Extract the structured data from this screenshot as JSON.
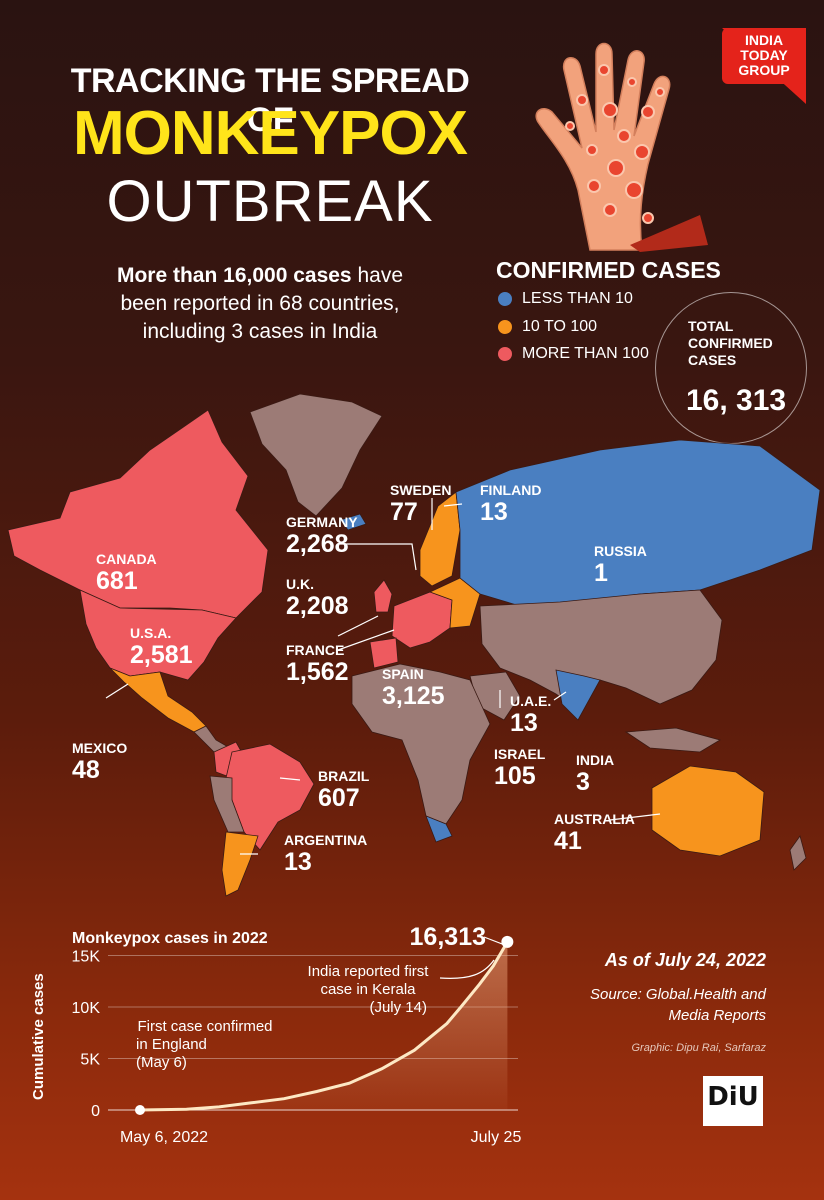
{
  "brand": {
    "text": "INDIA TODAY GROUP",
    "color": "#e4231b"
  },
  "headline": {
    "line1": "TRACKING THE SPREAD OF",
    "line2": "MONKEYPOX",
    "line3": "OUTBREAK"
  },
  "subheading": {
    "bold": "More than 16,000 cases",
    "rest1": " have",
    "line2": "been reported in 68 countries,",
    "line3": "including 3 cases in India"
  },
  "legend": {
    "title": "CONFIRMED CASES",
    "items": [
      {
        "label": "LESS THAN 10",
        "color": "#4a7fc1"
      },
      {
        "label": "10 TO 100",
        "color": "#f7941d"
      },
      {
        "label": "MORE THAN 100",
        "color": "#ee5a5f"
      }
    ]
  },
  "total": {
    "label_line1": "TOTAL",
    "label_line2": "CONFIRMED",
    "label_line3": "CASES",
    "value": "16, 313"
  },
  "map_colors": {
    "less_than_10": "#4a7fc1",
    "ten_to_100": "#f7941d",
    "more_than_100": "#ee5a5f",
    "other": "#9c7b76"
  },
  "countries": [
    {
      "name": "CANADA",
      "cases": "681"
    },
    {
      "name": "U.S.A.",
      "cases": "2,581"
    },
    {
      "name": "MEXICO",
      "cases": "48"
    },
    {
      "name": "BRAZIL",
      "cases": "607"
    },
    {
      "name": "ARGENTINA",
      "cases": "13"
    },
    {
      "name": "GERMANY",
      "cases": "2,268"
    },
    {
      "name": "U.K.",
      "cases": "2,208"
    },
    {
      "name": "FRANCE",
      "cases": "1,562"
    },
    {
      "name": "SPAIN",
      "cases": "3,125"
    },
    {
      "name": "SWEDEN",
      "cases": "77"
    },
    {
      "name": "FINLAND",
      "cases": "13"
    },
    {
      "name": "RUSSIA",
      "cases": "1"
    },
    {
      "name": "U.A.E.",
      "cases": "13"
    },
    {
      "name": "ISRAEL",
      "cases": "105"
    },
    {
      "name": "INDIA",
      "cases": "3"
    },
    {
      "name": "AUSTRALIA",
      "cases": "41"
    }
  ],
  "chart_data": {
    "type": "area",
    "title": "Monkeypox cases in 2022",
    "xlabel": "",
    "ylabel": "Cumulative cases",
    "x_tick_labels": [
      "May 6, 2022",
      "July 25"
    ],
    "y_ticks": [
      "0",
      "5K",
      "10K",
      "15K"
    ],
    "ylim": [
      0,
      16500
    ],
    "x_domain": [
      "2022-05-06",
      "2022-07-25"
    ],
    "series": [
      {
        "x": [
          "2022-05-06",
          "2022-05-16",
          "2022-05-23",
          "2022-05-30",
          "2022-06-06",
          "2022-06-13",
          "2022-06-20",
          "2022-06-27",
          "2022-07-04",
          "2022-07-11",
          "2022-07-14",
          "2022-07-18",
          "2022-07-21",
          "2022-07-24"
        ],
        "y": [
          1,
          80,
          300,
          700,
          1100,
          1800,
          2600,
          4000,
          5800,
          8400,
          10000,
          12200,
          14000,
          16313
        ]
      }
    ],
    "endpoint_label": "16,313",
    "annotations": [
      {
        "text_line1": "First case confirmed",
        "text_line2": "in England",
        "text_line3": "(May 6)"
      },
      {
        "text_line1": "India reported first",
        "text_line2": "case in Kerala",
        "text_line3": "(July 14)"
      }
    ]
  },
  "footer": {
    "as_of": "As of July 24, 2022",
    "source_line1": "Source: Global.Health and",
    "source_line2": "Media Reports",
    "graphic": "Graphic: Dipu Rai, Sarfaraz",
    "logo": "DiU"
  }
}
